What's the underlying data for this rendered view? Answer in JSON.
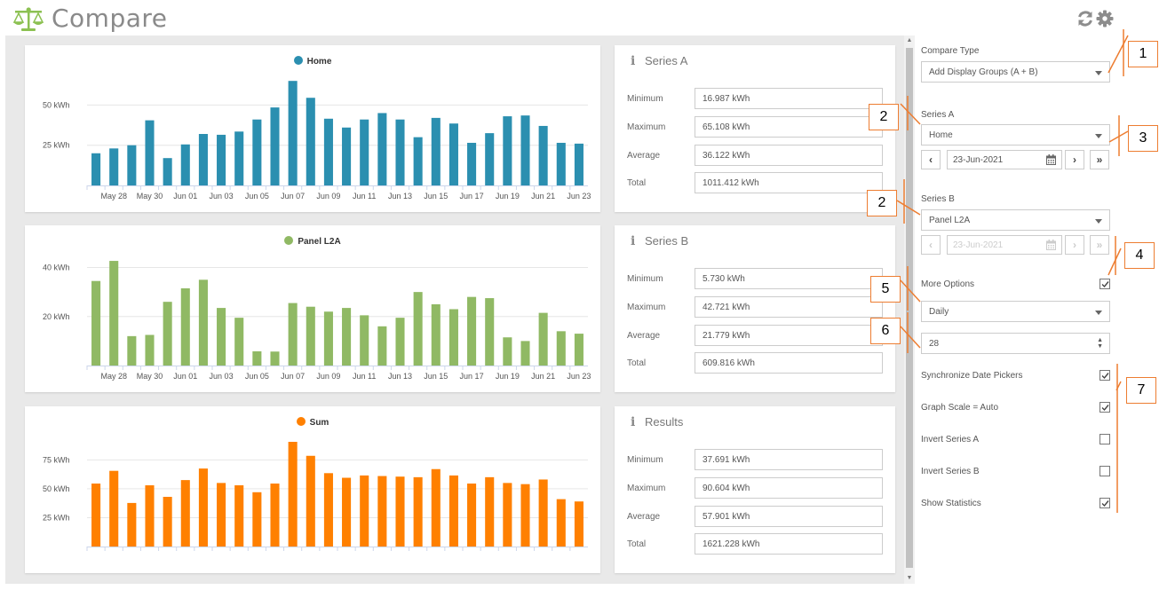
{
  "header": {
    "title": "Compare",
    "logo_icon": "balance-scale-icon",
    "refresh_icon": "refresh-icon",
    "settings_icon": "gear-icon"
  },
  "charts": [
    {
      "id": "a",
      "legend": "Home",
      "color": "#2b8fb0"
    },
    {
      "id": "b",
      "legend": "Panel L2A",
      "color": "#90b964"
    },
    {
      "id": "sum",
      "legend": "Sum",
      "color": "#ff8000"
    }
  ],
  "chart_data": [
    {
      "type": "bar",
      "series": [
        {
          "name": "Home",
          "values": [
            20,
            23,
            25,
            40.5,
            17,
            25.5,
            32,
            31.5,
            33.5,
            41,
            48.5,
            65,
            54.5,
            41.5,
            36,
            41,
            45,
            41,
            30,
            42,
            38.5,
            26.5,
            32.5,
            43,
            43.5,
            37,
            26.5,
            26
          ]
        }
      ],
      "x_tick_labels": [
        "May 28",
        "May 30",
        "Jun 01",
        "Jun 03",
        "Jun 05",
        "Jun 07",
        "Jun 09",
        "Jun 11",
        "Jun 13",
        "Jun 15",
        "Jun 17",
        "Jun 19",
        "Jun 21",
        "Jun 23"
      ],
      "y_ticks": [
        25,
        50
      ],
      "y_tick_labels": [
        "25 kWh",
        "50 kWh"
      ],
      "ylim": [
        0,
        65.108
      ]
    },
    {
      "type": "bar",
      "series": [
        {
          "name": "Panel L2A",
          "values": [
            34.5,
            42.7,
            12,
            12.5,
            26,
            31.5,
            35,
            23.5,
            19.5,
            5.8,
            5.7,
            25.5,
            24,
            22,
            23.5,
            20.5,
            16,
            19.5,
            30,
            25,
            23,
            28,
            27.5,
            11.5,
            10,
            21.5,
            14,
            13
          ]
        }
      ],
      "x_tick_labels": [
        "May 28",
        "May 30",
        "Jun 01",
        "Jun 03",
        "Jun 05",
        "Jun 07",
        "Jun 09",
        "Jun 11",
        "Jun 13",
        "Jun 15",
        "Jun 17",
        "Jun 19",
        "Jun 21",
        "Jun 23"
      ],
      "y_ticks": [
        20,
        40
      ],
      "y_tick_labels": [
        "20 kWh",
        "40 kWh"
      ],
      "ylim": [
        0,
        42.721
      ]
    },
    {
      "type": "bar",
      "series": [
        {
          "name": "Sum",
          "values": [
            54.5,
            65.5,
            37.7,
            53,
            43,
            57.5,
            67.5,
            55,
            53,
            47,
            54.5,
            90.6,
            78.5,
            63.5,
            59.5,
            61.5,
            61,
            60.5,
            60,
            67,
            61.5,
            54.5,
            60,
            55,
            54,
            58,
            41,
            39
          ]
        }
      ],
      "x_tick_labels": [],
      "y_ticks": [
        25,
        50,
        75
      ],
      "y_tick_labels": [
        "25 kWh",
        "50 kWh",
        "75 kWh"
      ],
      "ylim": [
        0,
        90.604
      ]
    }
  ],
  "stats": [
    {
      "title": "Series A",
      "rows": [
        {
          "label": "Minimum",
          "value": "16.987 kWh"
        },
        {
          "label": "Maximum",
          "value": "65.108 kWh"
        },
        {
          "label": "Average",
          "value": "36.122 kWh"
        },
        {
          "label": "Total",
          "value": "1011.412 kWh"
        }
      ]
    },
    {
      "title": "Series B",
      "rows": [
        {
          "label": "Minimum",
          "value": "5.730 kWh"
        },
        {
          "label": "Maximum",
          "value": "42.721 kWh"
        },
        {
          "label": "Average",
          "value": "21.779 kWh"
        },
        {
          "label": "Total",
          "value": "609.816 kWh"
        }
      ]
    },
    {
      "title": "Results",
      "rows": [
        {
          "label": "Minimum",
          "value": "37.691 kWh"
        },
        {
          "label": "Maximum",
          "value": "90.604 kWh"
        },
        {
          "label": "Average",
          "value": "57.901 kWh"
        },
        {
          "label": "Total",
          "value": "1621.228 kWh"
        }
      ]
    }
  ],
  "panel": {
    "compare_type_label": "Compare Type",
    "compare_type_value": "Add Display Groups (A + B)",
    "series_a_label": "Series A",
    "series_a_value": "Home",
    "series_a_date": "23-Jun-2021",
    "series_b_label": "Series B",
    "series_b_value": "Panel L2A",
    "series_b_date": "23-Jun-2021",
    "more_options_label": "More Options",
    "more_options_checked": true,
    "interval_value": "Daily",
    "count_value": "28",
    "prev_glyph": "‹",
    "next_glyph": "›",
    "last_glyph": "»",
    "options": [
      {
        "label": "Synchronize Date Pickers",
        "checked": true
      },
      {
        "label": "Graph Scale = Auto",
        "checked": true
      },
      {
        "label": "Invert Series A",
        "checked": false
      },
      {
        "label": "Invert Series B",
        "checked": false
      },
      {
        "label": "Show Statistics",
        "checked": true
      }
    ]
  },
  "annotations": {
    "c1": "1",
    "c2a": "2",
    "c2b": "2",
    "c3": "3",
    "c4": "4",
    "c5": "5",
    "c6": "6",
    "c7": "7",
    "color": "#ed7d31"
  }
}
